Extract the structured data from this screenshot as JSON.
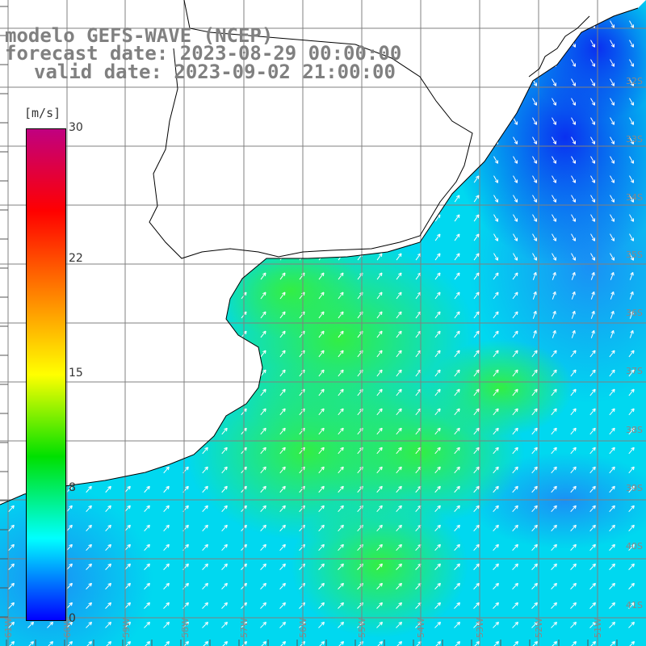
{
  "header": {
    "line1": "modelo GEFS-WAVE (NCEP)",
    "line2": "forecast date: 2023-08-29 00:00:00",
    "line3": "valid date: 2023-09-02 21:00:00"
  },
  "legend": {
    "unit": "[m/s]",
    "min": 0,
    "max": 30,
    "ticks": [
      {
        "label": "30",
        "value": 30
      },
      {
        "label": "22",
        "value": 22
      },
      {
        "label": "15",
        "value": 15
      },
      {
        "label": "8",
        "value": 8
      },
      {
        "label": "0",
        "value": 0
      }
    ],
    "colors": [
      "#0000ff",
      "#00ffff",
      "#00e000",
      "#ffff00",
      "#ff8000",
      "#ff0000",
      "#c00080"
    ]
  },
  "map": {
    "lat_labels": [
      "32S",
      "33S",
      "34S",
      "35S",
      "36S",
      "37S",
      "38S",
      "39S",
      "40S",
      "41S"
    ],
    "lon_labels": [
      "61W",
      "60W",
      "59W",
      "58W",
      "57W",
      "56W",
      "55W",
      "54W",
      "53W",
      "52W",
      "51W"
    ],
    "ocean_color": "#00d8f0",
    "land_color": "#ffffff",
    "grid_color": "#808080",
    "arrow_color": "#ffffff",
    "coast_color": "#000000"
  }
}
